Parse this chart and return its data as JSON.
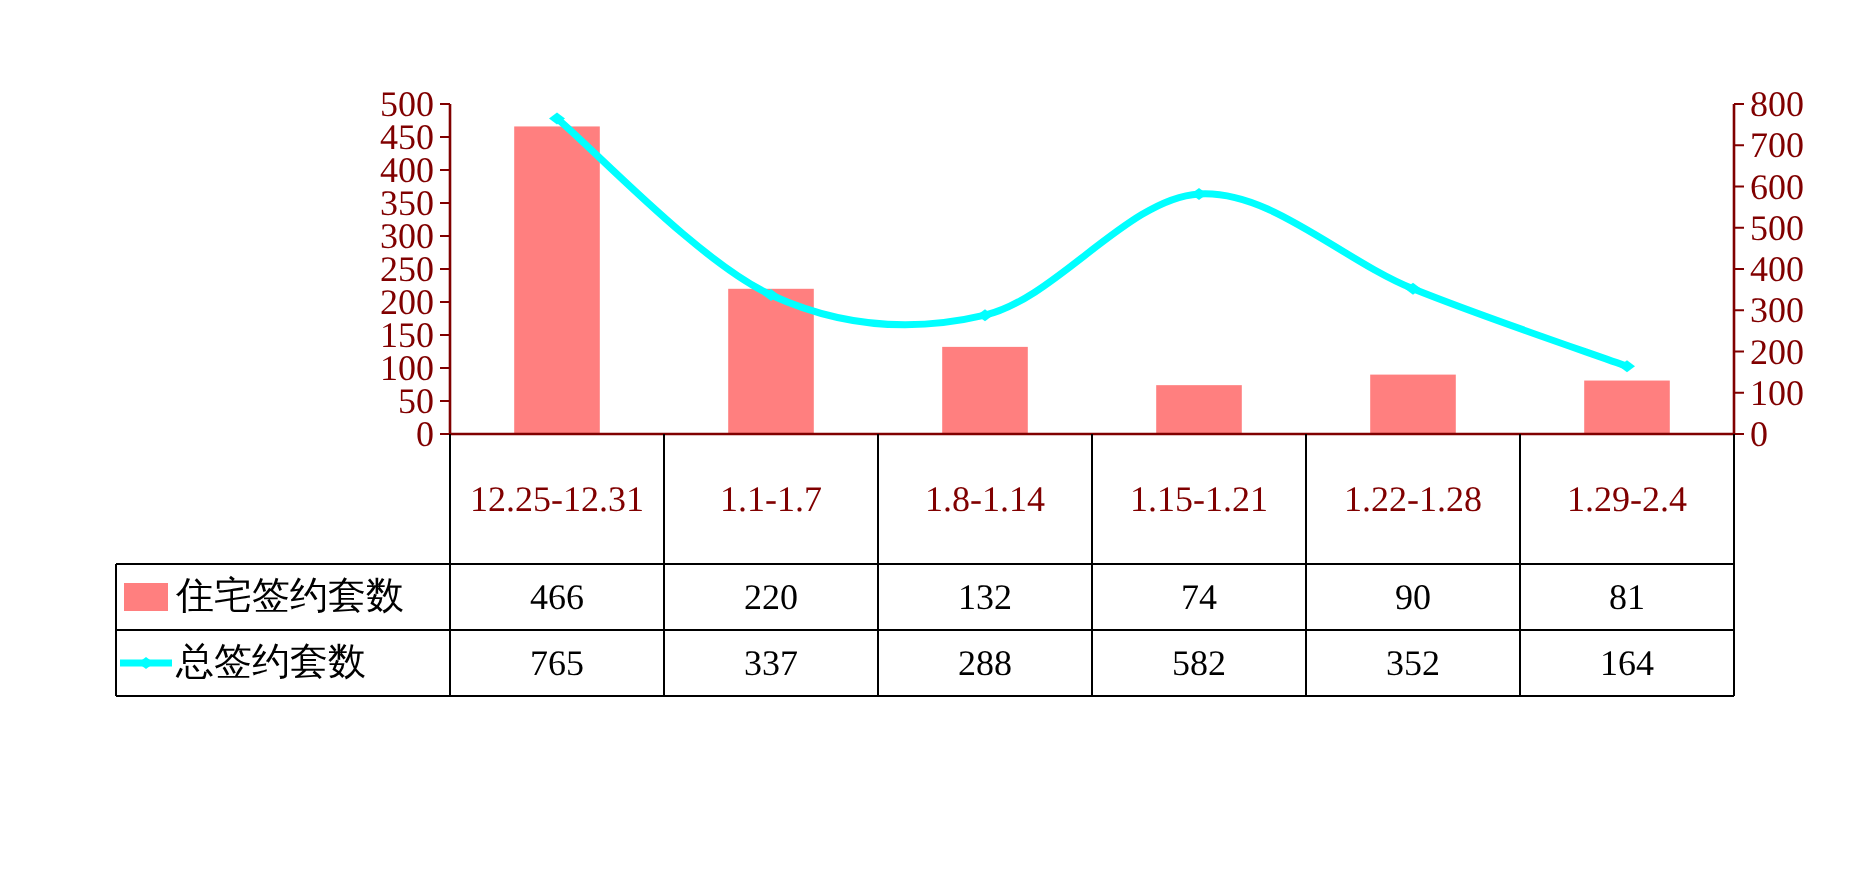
{
  "chart_data": {
    "type": "bar",
    "categories": [
      "12.25-12.31",
      "1.1-1.7",
      "1.8-1.14",
      "1.15-1.21",
      "1.22-1.28",
      "1.29-2.4"
    ],
    "series": [
      {
        "name": "住宅签约套数",
        "type": "bar",
        "color": "#ff7f7f",
        "values": [
          466,
          220,
          132,
          74,
          90,
          81
        ]
      },
      {
        "name": "总签约套数",
        "type": "line",
        "axis": "y2",
        "color": "#00ffff",
        "marker": "diamond",
        "values": [
          765,
          337,
          288,
          582,
          352,
          164
        ]
      }
    ],
    "ylim": [
      0,
      500
    ],
    "yticks": [
      0,
      50,
      100,
      150,
      200,
      250,
      300,
      350,
      400,
      450,
      500
    ],
    "y2lim": [
      0,
      800
    ],
    "y2ticks": [
      0,
      100,
      200,
      300,
      400,
      500,
      600,
      700,
      800
    ],
    "data_labels": true,
    "legend": "bottom",
    "grid": false
  }
}
